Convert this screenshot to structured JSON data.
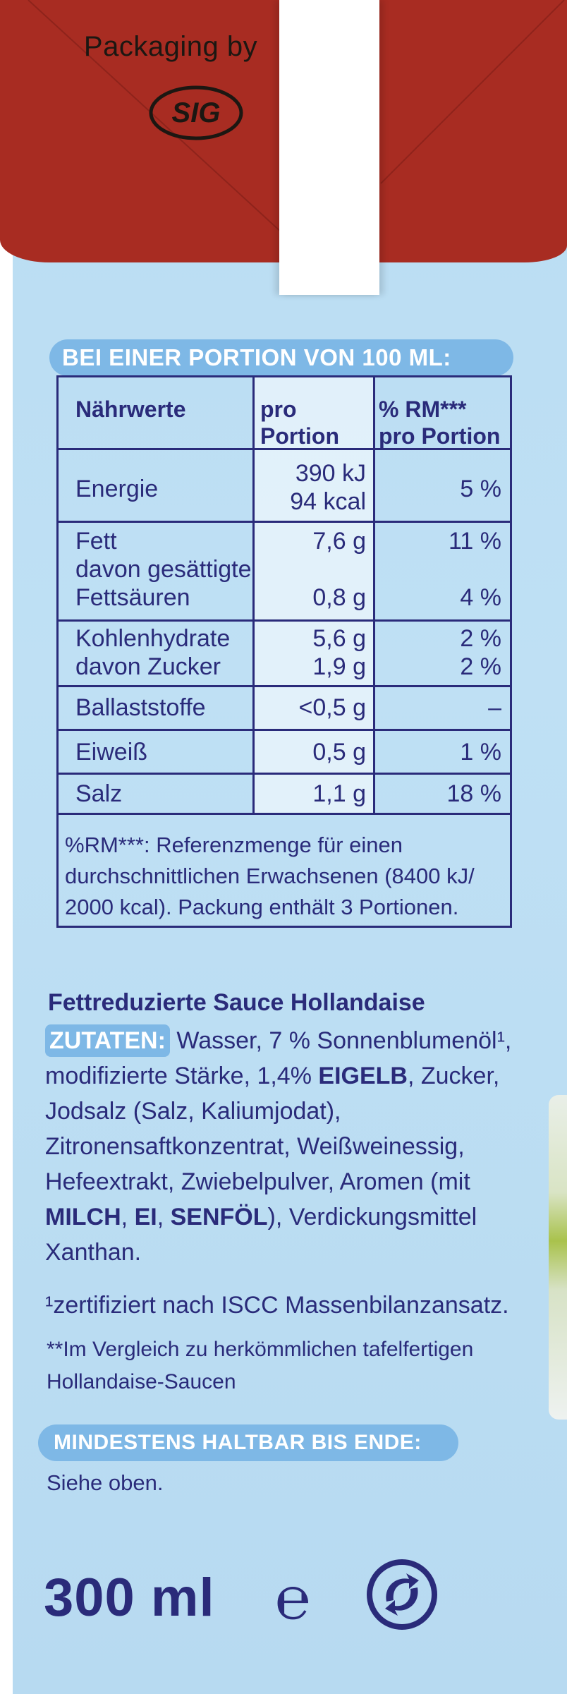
{
  "top_band": {
    "packaging_by": "Packaging by",
    "logo_text": "SIG"
  },
  "nutrition": {
    "portion_heading": "BEI EINER PORTION VON 100 ML:",
    "headers": {
      "name": "Nährwerte",
      "per_portion": "pro\nPortion",
      "rm": "% RM***\npro Portion"
    },
    "rows": [
      {
        "name": "Energie",
        "value": "390 kJ\n94 kcal",
        "rm": "5 %"
      },
      {
        "name": "Fett\ndavon gesättigte\nFettsäuren",
        "value": "7,6 g\n\n0,8 g",
        "rm": "11 %\n\n4 %"
      },
      {
        "name": "Kohlenhydrate\ndavon Zucker",
        "value": "5,6 g\n1,9 g",
        "rm": "2 %\n2 %"
      },
      {
        "name": "Ballaststoffe",
        "value": "<0,5 g",
        "rm": "–"
      },
      {
        "name": "Eiweiß",
        "value": "0,5 g",
        "rm": "1 %"
      },
      {
        "name": "Salz",
        "value": "1,1 g",
        "rm": "18 %"
      }
    ],
    "footnote": "%RM***: Referenzmenge für einen durchschnittlichen Erwachsenen (8400 kJ/ 2000 kcal). Packung enthält 3 Portionen."
  },
  "ingredients": {
    "product_name": "Fettreduzierte Sauce Hollandaise",
    "label": "ZUTATEN:",
    "part1": " Wasser, 7 % Sonnenblumenöl¹, modifizierte Stärke, 1,4% ",
    "allergen1": "EIGELB",
    "part2": ", Zucker, Jodsalz (Salz, Kaliumjodat), Zitronensaftkonzentrat, Weißweinessig, Hefeextrakt, Zwiebelpulver, Aromen (mit ",
    "allergen2": "MILCH",
    "sep1": ", ",
    "allergen3": "EI",
    "sep2": ", ",
    "allergen4": "SENFÖL",
    "part3": "), Verdickungsmittel Xanthan.",
    "iscc_note": "¹zertifiziert nach ISCC Massenbilanzansatz.",
    "comparison_note": "**Im Vergleich zu herkömmlichen tafelfertigen Hollandaise-Saucen"
  },
  "best_before": {
    "heading": "MINDESTENS HALTBAR BIS ENDE:",
    "text": "Siehe oben."
  },
  "bottom": {
    "volume": "300 ml",
    "estimated_sign": "℮",
    "recycle_icon": "green-dot-icon"
  },
  "colors": {
    "brand_red": "#a82c22",
    "panel_blue": "#b9dcf2",
    "text_navy": "#2a2b7a",
    "heading_pill": "#7eb8e6"
  }
}
